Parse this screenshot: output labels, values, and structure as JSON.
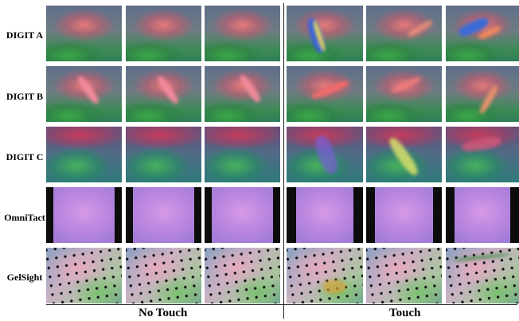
{
  "rows": [
    {
      "label": "DIGIT A"
    },
    {
      "label": "DIGIT B"
    },
    {
      "label": "DIGIT C"
    },
    {
      "label": "OmniTact"
    },
    {
      "label": "GelSight"
    }
  ],
  "groups": [
    {
      "label": "No Touch"
    },
    {
      "label": "Touch"
    }
  ]
}
